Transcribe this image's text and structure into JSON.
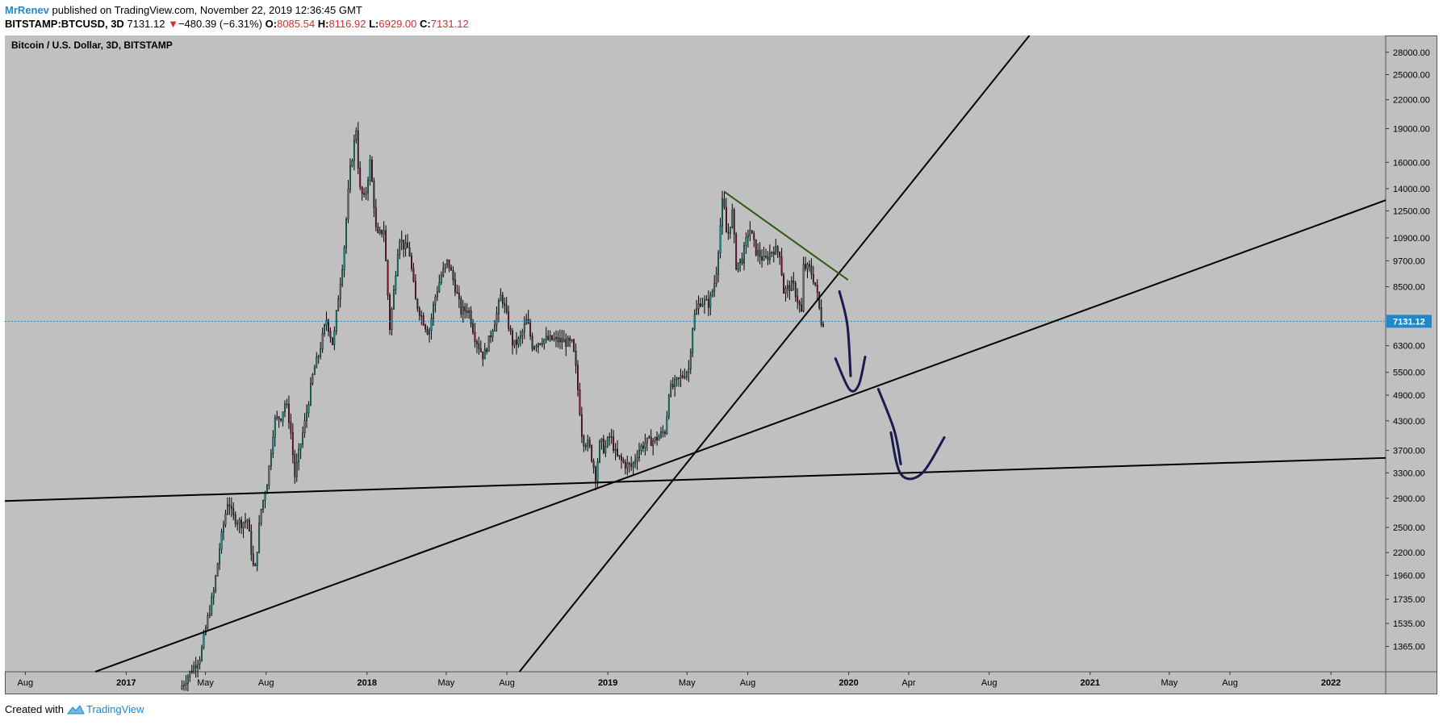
{
  "header": {
    "author": "MrRenev",
    "published_text": "published on TradingView.com, November 22, 2019 12:36:45 GMT",
    "symbol": "BITSTAMP:BTCUSD, 3D",
    "last": "7131.12",
    "change_arrow": "▼",
    "change": "−480.39 (−6.31%)",
    "o_label": "O:",
    "o_value": "8085.54",
    "h_label": "H:",
    "h_value": "8116.92",
    "l_label": "L:",
    "l_value": "6929.00",
    "c_label": "C:",
    "c_value": "7131.12"
  },
  "footer": {
    "created_with": "Created with",
    "brand": "TradingView"
  },
  "colors": {
    "background": "#c0c0c0",
    "up_candle": "#26a69a",
    "down_candle": "#8b1a3a",
    "wick": "#000000",
    "trendline": "#000000",
    "green_trendline": "#2e5a14",
    "drawing": "#1a1a4e",
    "last_price": "#1e88c9"
  },
  "chart_data": {
    "type": "candlestick",
    "title": "Bitcoin / U.S. Dollar, 3D, BITSTAMP",
    "y_scale": "log",
    "ylim": [
      1200,
      30500
    ],
    "x_range": [
      "2016-07-01",
      "2022-03-25"
    ],
    "last_price": 7131.12,
    "last_price_label": "7131.12",
    "y_ticks": [
      {
        "value": 28000,
        "label": "28000.00"
      },
      {
        "value": 25000,
        "label": "25000.00"
      },
      {
        "value": 22000,
        "label": "22000.00"
      },
      {
        "value": 19000,
        "label": "19000.00"
      },
      {
        "value": 16000,
        "label": "16000.00"
      },
      {
        "value": 14000,
        "label": "14000.00"
      },
      {
        "value": 12500,
        "label": "12500.00"
      },
      {
        "value": 10900,
        "label": "10900.00"
      },
      {
        "value": 9700,
        "label": "9700.00"
      },
      {
        "value": 8500,
        "label": "8500.00"
      },
      {
        "value": 6300,
        "label": "6300.00"
      },
      {
        "value": 5500,
        "label": "5500.00"
      },
      {
        "value": 4900,
        "label": "4900.00"
      },
      {
        "value": 4300,
        "label": "4300.00"
      },
      {
        "value": 3700,
        "label": "3700.00"
      },
      {
        "value": 3300,
        "label": "3300.00"
      },
      {
        "value": 2900,
        "label": "2900.00"
      },
      {
        "value": 2500,
        "label": "2500.00"
      },
      {
        "value": 2200,
        "label": "2200.00"
      },
      {
        "value": 1960,
        "label": "1960.00"
      },
      {
        "value": 1735,
        "label": "1735.00"
      },
      {
        "value": 1535,
        "label": "1535.00"
      },
      {
        "value": 1365,
        "label": "1365.00"
      }
    ],
    "x_ticks": [
      {
        "date": "2016-08-01",
        "label": "Aug",
        "major": false
      },
      {
        "date": "2017-01-01",
        "label": "2017",
        "major": true
      },
      {
        "date": "2017-05-01",
        "label": "May",
        "major": false
      },
      {
        "date": "2017-08-01",
        "label": "Aug",
        "major": false
      },
      {
        "date": "2018-01-01",
        "label": "2018",
        "major": true
      },
      {
        "date": "2018-05-01",
        "label": "May",
        "major": false
      },
      {
        "date": "2018-08-01",
        "label": "Aug",
        "major": false
      },
      {
        "date": "2019-01-01",
        "label": "2019",
        "major": true
      },
      {
        "date": "2019-05-01",
        "label": "May",
        "major": false
      },
      {
        "date": "2019-08-01",
        "label": "Aug",
        "major": false
      },
      {
        "date": "2020-01-01",
        "label": "2020",
        "major": true
      },
      {
        "date": "2020-04-01",
        "label": "Apr",
        "major": false
      },
      {
        "date": "2020-08-01",
        "label": "Aug",
        "major": false
      },
      {
        "date": "2021-01-01",
        "label": "2021",
        "major": true
      },
      {
        "date": "2021-05-01",
        "label": "May",
        "major": false
      },
      {
        "date": "2021-08-01",
        "label": "Aug",
        "major": false
      },
      {
        "date": "2022-01-01",
        "label": "2022",
        "major": true
      }
    ],
    "price_path": [
      [
        "2017-03-25",
        1100
      ],
      [
        "2017-04-10",
        1200
      ],
      [
        "2017-04-25",
        1300
      ],
      [
        "2017-05-05",
        1550
      ],
      [
        "2017-05-15",
        1800
      ],
      [
        "2017-05-25",
        2300
      ],
      [
        "2017-06-06",
        2900
      ],
      [
        "2017-06-12",
        2650
      ],
      [
        "2017-06-25",
        2550
      ],
      [
        "2017-07-05",
        2600
      ],
      [
        "2017-07-16",
        1950
      ],
      [
        "2017-07-25",
        2700
      ],
      [
        "2017-08-05",
        3200
      ],
      [
        "2017-08-15",
        4300
      ],
      [
        "2017-08-25",
        4400
      ],
      [
        "2017-09-01",
        4750
      ],
      [
        "2017-09-08",
        4200
      ],
      [
        "2017-09-15",
        3250
      ],
      [
        "2017-09-22",
        3700
      ],
      [
        "2017-10-02",
        4400
      ],
      [
        "2017-10-13",
        5500
      ],
      [
        "2017-10-21",
        6000
      ],
      [
        "2017-11-02",
        7200
      ],
      [
        "2017-11-12",
        6300
      ],
      [
        "2017-11-20",
        8100
      ],
      [
        "2017-11-28",
        10000
      ],
      [
        "2017-12-07",
        15000
      ],
      [
        "2017-12-17",
        19000
      ],
      [
        "2017-12-22",
        14000
      ],
      [
        "2017-12-30",
        13200
      ],
      [
        "2018-01-07",
        16000
      ],
      [
        "2018-01-12",
        13500
      ],
      [
        "2018-01-17",
        10900
      ],
      [
        "2018-01-28",
        11400
      ],
      [
        "2018-02-06",
        6900
      ],
      [
        "2018-02-12",
        8300
      ],
      [
        "2018-02-20",
        11000
      ],
      [
        "2018-02-28",
        10400
      ],
      [
        "2018-03-07",
        10300
      ],
      [
        "2018-03-17",
        7900
      ],
      [
        "2018-03-28",
        7200
      ],
      [
        "2018-04-06",
        6700
      ],
      [
        "2018-04-15",
        8000
      ],
      [
        "2018-04-25",
        9000
      ],
      [
        "2018-05-05",
        9700
      ],
      [
        "2018-05-15",
        8600
      ],
      [
        "2018-05-25",
        7500
      ],
      [
        "2018-06-05",
        7600
      ],
      [
        "2018-06-15",
        6600
      ],
      [
        "2018-06-28",
        5950
      ],
      [
        "2018-07-08",
        6600
      ],
      [
        "2018-07-18",
        7400
      ],
      [
        "2018-07-25",
        8200
      ],
      [
        "2018-08-03",
        7200
      ],
      [
        "2018-08-12",
        6300
      ],
      [
        "2018-08-22",
        6500
      ],
      [
        "2018-09-02",
        7200
      ],
      [
        "2018-09-10",
        6300
      ],
      [
        "2018-09-25",
        6500
      ],
      [
        "2018-10-10",
        6500
      ],
      [
        "2018-10-25",
        6450
      ],
      [
        "2018-11-10",
        6350
      ],
      [
        "2018-11-15",
        5600
      ],
      [
        "2018-11-20",
        4700
      ],
      [
        "2018-11-25",
        3900
      ],
      [
        "2018-12-05",
        3800
      ],
      [
        "2018-12-15",
        3250
      ],
      [
        "2018-12-22",
        3900
      ],
      [
        "2018-12-28",
        3700
      ],
      [
        "2019-01-06",
        4000
      ],
      [
        "2019-01-15",
        3600
      ],
      [
        "2019-01-28",
        3450
      ],
      [
        "2019-02-08",
        3400
      ],
      [
        "2019-02-18",
        3700
      ],
      [
        "2019-02-28",
        3850
      ],
      [
        "2019-03-15",
        3900
      ],
      [
        "2019-03-31",
        4100
      ],
      [
        "2019-04-05",
        5000
      ],
      [
        "2019-04-20",
        5300
      ],
      [
        "2019-05-05",
        5600
      ],
      [
        "2019-05-12",
        7200
      ],
      [
        "2019-05-22",
        7900
      ],
      [
        "2019-06-05",
        7800
      ],
      [
        "2019-06-15",
        8900
      ],
      [
        "2019-06-26",
        13500
      ],
      [
        "2019-07-02",
        10800
      ],
      [
        "2019-07-10",
        12400
      ],
      [
        "2019-07-16",
        9500
      ],
      [
        "2019-07-25",
        9800
      ],
      [
        "2019-08-05",
        11500
      ],
      [
        "2019-08-15",
        10200
      ],
      [
        "2019-08-28",
        9700
      ],
      [
        "2019-09-10",
        10300
      ],
      [
        "2019-09-20",
        10100
      ],
      [
        "2019-09-26",
        8300
      ],
      [
        "2019-10-10",
        8600
      ],
      [
        "2019-10-23",
        7450
      ],
      [
        "2019-10-26",
        9400
      ],
      [
        "2019-11-05",
        9300
      ],
      [
        "2019-11-14",
        8500
      ],
      [
        "2019-11-22",
        7131
      ]
    ],
    "trendlines": [
      {
        "name": "long-horizontal-support",
        "start": [
          "2016-07-01",
          2860
        ],
        "end": [
          "2022-03-25",
          3560
        ],
        "color": "#000000"
      },
      {
        "name": "rising-support-line",
        "start": [
          "2016-11-15",
          1200
        ],
        "end": [
          "2022-03-25",
          13200
        ],
        "color": "#000000"
      },
      {
        "name": "steep-rising-line",
        "start": [
          "2018-08-20",
          1200
        ],
        "end": [
          "2020-10-01",
          30500
        ],
        "color": "#000000"
      },
      {
        "name": "descending-resistance",
        "start": [
          "2019-06-26",
          13800
        ],
        "end": [
          "2019-12-31",
          8800
        ],
        "color": "#2e5a14"
      }
    ],
    "annotations": [
      {
        "name": "drawn-arrow-down-1",
        "points": [
          [
            "2019-12-18",
            8300
          ],
          [
            "2019-12-30",
            7000
          ],
          [
            "2020-01-04",
            5400
          ]
        ]
      },
      {
        "name": "drawn-curve-bounce-1",
        "points": [
          [
            "2019-12-12",
            5900
          ],
          [
            "2020-01-02",
            5050
          ],
          [
            "2020-01-16",
            5150
          ],
          [
            "2020-01-26",
            5950
          ]
        ]
      },
      {
        "name": "drawn-arrow-down-2",
        "points": [
          [
            "2020-02-15",
            5050
          ],
          [
            "2020-03-10",
            4100
          ],
          [
            "2020-03-20",
            3450
          ]
        ]
      },
      {
        "name": "drawn-curve-bounce-2",
        "points": [
          [
            "2020-03-05",
            4050
          ],
          [
            "2020-03-20",
            3280
          ],
          [
            "2020-04-20",
            3280
          ],
          [
            "2020-05-25",
            3950
          ]
        ]
      }
    ]
  }
}
